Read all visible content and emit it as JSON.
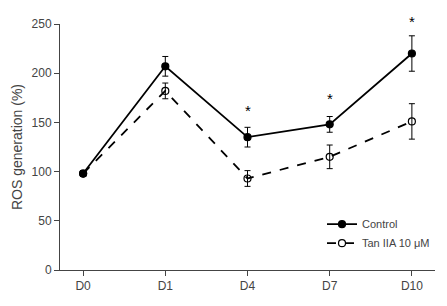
{
  "chart_data": {
    "type": "line",
    "categories": [
      "D0",
      "D1",
      "D4",
      "D7",
      "D10"
    ],
    "ylabel": "ROS generation (%)",
    "ylim": [
      0,
      250
    ],
    "yticks": [
      0,
      50,
      100,
      150,
      200,
      250
    ],
    "grid": false,
    "legend": "lower right",
    "series": [
      {
        "name": "Control",
        "color": "#000000",
        "line_style": "solid",
        "marker": "circle",
        "values": [
          98,
          207,
          135,
          148,
          220
        ],
        "errors": [
          3,
          10,
          10,
          8,
          18
        ]
      },
      {
        "name": "Tan IIA 10 μM",
        "color": "#000000",
        "line_style": "dash",
        "marker": "circle-open",
        "values": [
          98,
          182,
          93,
          115,
          151
        ],
        "errors": [
          3,
          8,
          8,
          12,
          18
        ]
      }
    ],
    "annotations": [
      {
        "text": "*",
        "x": "D4",
        "y": 151
      },
      {
        "text": "*",
        "x": "D7",
        "y": 164
      },
      {
        "text": "*",
        "x": "D10",
        "y": 242
      }
    ]
  }
}
